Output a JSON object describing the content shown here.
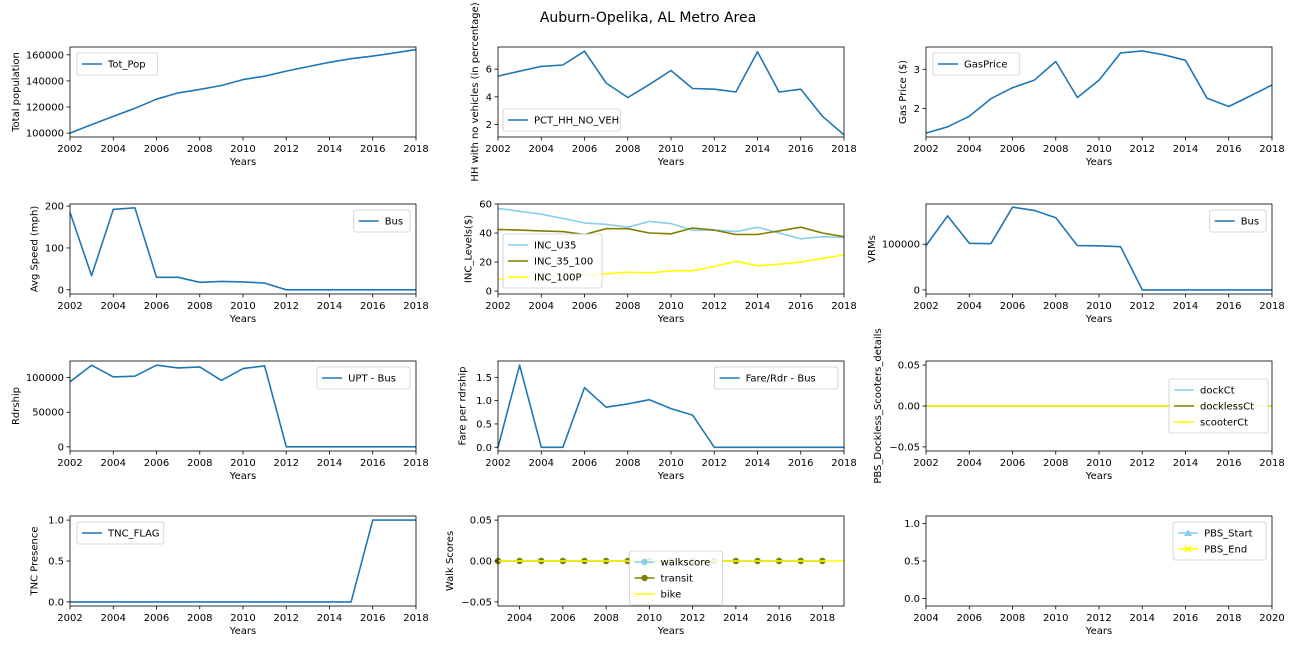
{
  "title": "Auburn-Opelika, AL Metro Area",
  "colors": {
    "blue": "#1f77b4",
    "skyblue": "#87ceeb",
    "olive": "#808000",
    "yellow": "#ffff00"
  },
  "chart_data": [
    {
      "type": "line",
      "xlabel": "Years",
      "ylabel": "Total population",
      "xlim": [
        2002,
        2018
      ],
      "ylim": [
        97000,
        166000
      ],
      "xticks": [
        2002,
        2004,
        2006,
        2008,
        2010,
        2012,
        2014,
        2016,
        2018
      ],
      "yticks": [
        100000,
        120000,
        140000,
        160000
      ],
      "ytick_labels": [
        "100000",
        "120000",
        "140000",
        "160000"
      ],
      "legend": "upper-left",
      "series": [
        {
          "name": "Tot_Pop",
          "color": "#1f77b4",
          "x": [
            2002,
            2003,
            2004,
            2005,
            2006,
            2007,
            2008,
            2009,
            2010,
            2011,
            2012,
            2013,
            2014,
            2015,
            2016,
            2017,
            2018
          ],
          "y": [
            100000,
            106500,
            112800,
            119000,
            126000,
            130800,
            133500,
            136500,
            141000,
            143600,
            147500,
            151000,
            154300,
            157000,
            159000,
            161500,
            164000
          ]
        }
      ]
    },
    {
      "type": "line",
      "xlabel": "Years",
      "ylabel": "HH with no vehicles (in percentage)",
      "xlim": [
        2002,
        2018
      ],
      "ylim": [
        1.1,
        7.6
      ],
      "xticks": [
        2002,
        2004,
        2006,
        2008,
        2010,
        2012,
        2014,
        2016,
        2018
      ],
      "yticks": [
        2,
        4,
        6
      ],
      "ytick_labels": [
        "2",
        "4",
        "6"
      ],
      "legend": "lower-left",
      "series": [
        {
          "name": "PCT_HH_NO_VEH",
          "color": "#1f77b4",
          "x": [
            2002,
            2003,
            2004,
            2005,
            2006,
            2007,
            2008,
            2009,
            2010,
            2011,
            2012,
            2013,
            2014,
            2015,
            2016,
            2017,
            2018
          ],
          "y": [
            5.5,
            5.85,
            6.2,
            6.3,
            7.3,
            5.0,
            3.95,
            4.9,
            5.9,
            4.6,
            4.55,
            4.35,
            7.25,
            4.35,
            4.55,
            2.6,
            1.25
          ]
        }
      ]
    },
    {
      "type": "line",
      "xlabel": "Years",
      "ylabel": "Gas Price ($)",
      "xlim": [
        2002,
        2018
      ],
      "ylim": [
        1.27,
        3.57
      ],
      "xticks": [
        2002,
        2004,
        2006,
        2008,
        2010,
        2012,
        2014,
        2016,
        2018
      ],
      "yticks": [
        2,
        3
      ],
      "ytick_labels": [
        "2",
        "3"
      ],
      "legend": "upper-left",
      "series": [
        {
          "name": "GasPrice",
          "color": "#1f77b4",
          "x": [
            2002,
            2003,
            2004,
            2005,
            2006,
            2007,
            2008,
            2009,
            2010,
            2011,
            2012,
            2013,
            2014,
            2015,
            2016,
            2017,
            2018
          ],
          "y": [
            1.37,
            1.53,
            1.8,
            2.25,
            2.53,
            2.72,
            3.2,
            2.28,
            2.72,
            3.42,
            3.47,
            3.37,
            3.23,
            2.26,
            2.05,
            2.32,
            2.6
          ]
        }
      ]
    },
    {
      "type": "line",
      "xlabel": "Years",
      "ylabel": "Avg Speed (mph)",
      "xlim": [
        2002,
        2018
      ],
      "ylim": [
        -10,
        205
      ],
      "xticks": [
        2002,
        2004,
        2006,
        2008,
        2010,
        2012,
        2014,
        2016,
        2018
      ],
      "yticks": [
        0,
        100,
        200
      ],
      "ytick_labels": [
        "0",
        "100",
        "200"
      ],
      "legend": "upper-right",
      "series": [
        {
          "name": "Bus",
          "color": "#1f77b4",
          "x": [
            2002,
            2003,
            2004,
            2005,
            2006,
            2007,
            2008,
            2009,
            2010,
            2011,
            2012,
            2013,
            2014,
            2015,
            2016,
            2017,
            2018
          ],
          "y": [
            185,
            34,
            192,
            196,
            30,
            30,
            18,
            20,
            19,
            16,
            0,
            0,
            0,
            0,
            0,
            0,
            0
          ]
        }
      ]
    },
    {
      "type": "line",
      "xlabel": "Years",
      "ylabel": "INC_Levels($)",
      "xlim": [
        2002,
        2018
      ],
      "ylim": [
        -2,
        60
      ],
      "xticks": [
        2002,
        2004,
        2006,
        2008,
        2010,
        2012,
        2014,
        2016,
        2018
      ],
      "yticks": [
        0,
        20,
        40,
        60
      ],
      "ytick_labels": [
        "0",
        "20",
        "40",
        "60"
      ],
      "legend": "lower-left",
      "series": [
        {
          "name": "INC_U35",
          "color": "#87ceeb",
          "x": [
            2002,
            2003,
            2004,
            2005,
            2006,
            2007,
            2008,
            2009,
            2010,
            2011,
            2012,
            2013,
            2014,
            2015,
            2016,
            2017,
            2018
          ],
          "y": [
            57,
            55,
            53,
            50,
            47,
            46,
            44,
            48,
            46.5,
            42,
            42,
            41,
            44,
            40,
            36,
            37.5,
            37
          ]
        },
        {
          "name": "INC_35_100",
          "color": "#808000",
          "x": [
            2002,
            2003,
            2004,
            2005,
            2006,
            2007,
            2008,
            2009,
            2010,
            2011,
            2012,
            2013,
            2014,
            2015,
            2016,
            2017,
            2018
          ],
          "y": [
            42.5,
            42,
            41.5,
            41,
            39,
            43,
            43,
            40,
            39.5,
            43.5,
            42,
            39,
            39,
            41.5,
            44,
            40,
            37.5
          ]
        },
        {
          "name": "INC_100P",
          "color": "#ffff00",
          "x": [
            2002,
            2003,
            2004,
            2005,
            2006,
            2007,
            2008,
            2009,
            2010,
            2011,
            2012,
            2013,
            2014,
            2015,
            2016,
            2017,
            2018
          ],
          "y": [
            8,
            9,
            10,
            10.5,
            11,
            12,
            13,
            12.5,
            14,
            14,
            17,
            20.5,
            17.5,
            18.5,
            20,
            22.5,
            25
          ]
        }
      ]
    },
    {
      "type": "line",
      "xlabel": "Years",
      "ylabel": "VRMs",
      "xlim": [
        2002,
        2018
      ],
      "ylim": [
        -9000,
        188000
      ],
      "xticks": [
        2002,
        2004,
        2006,
        2008,
        2010,
        2012,
        2014,
        2016,
        2018
      ],
      "yticks": [
        0,
        100000
      ],
      "ytick_labels": [
        "0",
        "100000"
      ],
      "legend": "upper-right",
      "series": [
        {
          "name": "Bus",
          "color": "#1f77b4",
          "x": [
            2002,
            2003,
            2004,
            2005,
            2006,
            2007,
            2008,
            2009,
            2010,
            2011,
            2012,
            2013,
            2014,
            2015,
            2016,
            2017,
            2018
          ],
          "y": [
            97000,
            162000,
            102000,
            101000,
            181000,
            174000,
            158000,
            97000,
            96500,
            94500,
            0,
            0,
            0,
            0,
            0,
            0,
            0
          ]
        }
      ]
    },
    {
      "type": "line",
      "xlabel": "Years",
      "ylabel": "Rdrship",
      "xlim": [
        2002,
        2018
      ],
      "ylim": [
        -6000,
        124000
      ],
      "xticks": [
        2002,
        2004,
        2006,
        2008,
        2010,
        2012,
        2014,
        2016,
        2018
      ],
      "yticks": [
        0,
        50000,
        100000
      ],
      "ytick_labels": [
        "0",
        "50000",
        "100000"
      ],
      "legend": "upper-right",
      "series": [
        {
          "name": "UPT - Bus",
          "color": "#1f77b4",
          "x": [
            2002,
            2003,
            2004,
            2005,
            2006,
            2007,
            2008,
            2009,
            2010,
            2011,
            2012,
            2013,
            2014,
            2015,
            2016,
            2017,
            2018
          ],
          "y": [
            94000,
            118000,
            101000,
            102000,
            118000,
            114000,
            115500,
            96000,
            113000,
            117000,
            0,
            0,
            0,
            0,
            0,
            0,
            0
          ]
        }
      ]
    },
    {
      "type": "line",
      "xlabel": "Years",
      "ylabel": "Fare per rdrship",
      "xlim": [
        2002,
        2018
      ],
      "ylim": [
        -0.08,
        1.85
      ],
      "xticks": [
        2002,
        2004,
        2006,
        2008,
        2010,
        2012,
        2014,
        2016,
        2018
      ],
      "yticks": [
        0,
        0.5,
        1.0,
        1.5
      ],
      "ytick_labels": [
        "0.0",
        "0.5",
        "1.0",
        "1.5"
      ],
      "legend": "upper-right",
      "series": [
        {
          "name": "Fare/Rdr - Bus",
          "color": "#1f77b4",
          "x": [
            2002,
            2003,
            2004,
            2005,
            2006,
            2007,
            2008,
            2009,
            2010,
            2011,
            2012,
            2013,
            2014,
            2015,
            2016,
            2017,
            2018
          ],
          "y": [
            0,
            1.76,
            0,
            0,
            1.28,
            0.86,
            0.93,
            1.02,
            0.83,
            0.69,
            0,
            0,
            0,
            0,
            0,
            0,
            0
          ]
        }
      ]
    },
    {
      "type": "line",
      "xlabel": "Years",
      "ylabel": "PBS_Dockless_Scooters_details",
      "xlim": [
        2002,
        2018
      ],
      "ylim": [
        -0.055,
        0.055
      ],
      "xticks": [
        2002,
        2004,
        2006,
        2008,
        2010,
        2012,
        2014,
        2016,
        2018
      ],
      "yticks": [
        -0.05,
        0,
        0.05
      ],
      "ytick_labels": [
        "−0.05",
        "0.00",
        "0.05"
      ],
      "legend": "right",
      "series": [
        {
          "name": "dockCt",
          "color": "#87ceeb",
          "x": [
            2002,
            2018
          ],
          "y": [
            0,
            0
          ]
        },
        {
          "name": "docklessCt",
          "color": "#808000",
          "x": [
            2002,
            2018
          ],
          "y": [
            0,
            0
          ]
        },
        {
          "name": "scooterCt",
          "color": "#ffff00",
          "x": [
            2002,
            2018
          ],
          "y": [
            0,
            0
          ]
        }
      ]
    },
    {
      "type": "line",
      "xlabel": "Years",
      "ylabel": "TNC Presence",
      "xlim": [
        2002,
        2018
      ],
      "ylim": [
        -0.05,
        1.05
      ],
      "xticks": [
        2002,
        2004,
        2006,
        2008,
        2010,
        2012,
        2014,
        2016,
        2018
      ],
      "yticks": [
        0,
        0.5,
        1.0
      ],
      "ytick_labels": [
        "0.0",
        "0.5",
        "1.0"
      ],
      "legend": "upper-left",
      "series": [
        {
          "name": "TNC_FLAG",
          "color": "#1f77b4",
          "x": [
            2002,
            2003,
            2004,
            2005,
            2006,
            2007,
            2008,
            2009,
            2010,
            2011,
            2012,
            2013,
            2014,
            2015,
            2016,
            2017,
            2018
          ],
          "y": [
            0,
            0,
            0,
            0,
            0,
            0,
            0,
            0,
            0,
            0,
            0,
            0,
            0,
            0,
            1,
            1,
            1
          ]
        }
      ]
    },
    {
      "type": "line",
      "xlabel": "Years",
      "ylabel": "Walk Scores",
      "xlim": [
        2003,
        2019
      ],
      "ylim": [
        -0.055,
        0.055
      ],
      "xticks": [
        2004,
        2006,
        2008,
        2010,
        2012,
        2014,
        2016,
        2018
      ],
      "yticks": [
        -0.05,
        0,
        0.05
      ],
      "ytick_labels": [
        "−0.05",
        "0.00",
        "0.05"
      ],
      "legend": "lower-center",
      "series": [
        {
          "name": "walkscore",
          "color": "#87ceeb",
          "marker": "circle",
          "x": [
            2003,
            2004,
            2005,
            2006,
            2007,
            2008,
            2009,
            2010,
            2011,
            2012,
            2013,
            2014,
            2015,
            2016,
            2017,
            2018
          ],
          "y": [
            0,
            0,
            0,
            0,
            0,
            0,
            0,
            0,
            0,
            0,
            0,
            0,
            0,
            0,
            0,
            0
          ]
        },
        {
          "name": "transit",
          "color": "#808000",
          "marker": "circle",
          "x": [
            2003,
            2004,
            2005,
            2006,
            2007,
            2008,
            2009,
            2010,
            2011,
            2012,
            2013,
            2014,
            2015,
            2016,
            2017,
            2018
          ],
          "y": [
            0,
            0,
            0,
            0,
            0,
            0,
            0,
            0,
            0,
            0,
            0,
            0,
            0,
            0,
            0,
            0
          ]
        },
        {
          "name": "bike",
          "color": "#ffff00",
          "x": [
            2003,
            2019
          ],
          "y": [
            0,
            0
          ]
        }
      ]
    },
    {
      "type": "line",
      "xlabel": "Years",
      "ylabel": "",
      "xlim": [
        2004,
        2020
      ],
      "ylim": [
        -0.1,
        1.1
      ],
      "xticks": [
        2004,
        2006,
        2008,
        2010,
        2012,
        2014,
        2016,
        2018,
        2020
      ],
      "yticks": [
        0,
        0.5,
        1.0
      ],
      "ytick_labels": [
        "0.0",
        "0.5",
        "1.0"
      ],
      "legend": "upper-right",
      "series": [
        {
          "name": "PBS_Start",
          "color": "#87ceeb",
          "marker": "triangle",
          "x": [],
          "y": []
        },
        {
          "name": "PBS_End",
          "color": "#ffff00",
          "marker": "x",
          "x": [],
          "y": []
        }
      ]
    }
  ]
}
